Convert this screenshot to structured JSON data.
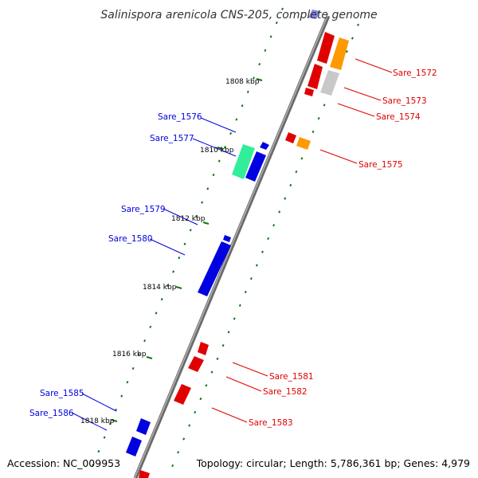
{
  "title": "Salinispora arenicola CNS-205, complete genome",
  "footer": {
    "accession": "Accession: NC_009953",
    "summary": "Topology: circular; Length: 5,786,361 bp; Genes: 4,979"
  },
  "colors": {
    "forward": "#e00000",
    "reverse": "#0000e0",
    "orange": "#ff9900",
    "teal": "#33ee99",
    "gray": "#c8c8c8",
    "backbone": "#888888",
    "tick": "#117711"
  },
  "kbp_marks": [
    "1808 kbp",
    "1810 kbp",
    "1812 kbp",
    "1814 kbp",
    "1816 kbp",
    "1818 kbp"
  ],
  "reverse_labels": [
    "Sare_1576",
    "Sare_1577",
    "Sare_1579",
    "Sare_1580",
    "Sare_1585",
    "Sare_1586"
  ],
  "forward_labels": [
    "Sare_1572",
    "Sare_1573",
    "Sare_1574",
    "Sare_1575",
    "Sare_1581",
    "Sare_1582",
    "Sare_1583"
  ]
}
